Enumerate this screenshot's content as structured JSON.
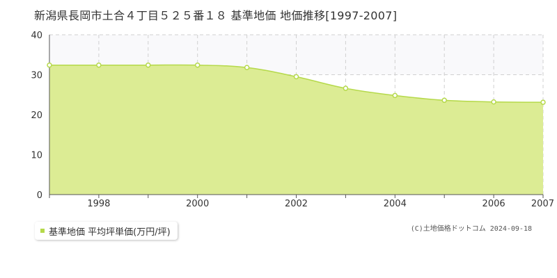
{
  "title": "新潟県長岡市土合４丁目５２５番１８ 基準地価 地価推移[1997-2007]",
  "legend_label": "基準地価 平均坪単価(万円/坪)",
  "credit": "(C)土地価格ドットコム 2024-09-18",
  "colors": {
    "fill": "#dcec94",
    "line": "#b5d94a",
    "grid": "#d0d0d0",
    "axis": "#555555",
    "upper_band": "#f9f9fb"
  },
  "chart_data": {
    "type": "area",
    "x": [
      1997,
      1998,
      1999,
      2000,
      2001,
      2002,
      2003,
      2004,
      2005,
      2006,
      2007
    ],
    "series": [
      {
        "name": "基準地価 平均坪単価(万円/坪)",
        "values": [
          32.4,
          32.4,
          32.4,
          32.4,
          31.8,
          29.5,
          26.6,
          24.8,
          23.6,
          23.2,
          23.1
        ]
      }
    ],
    "xlim": [
      1997,
      2007
    ],
    "ylim": [
      0,
      40
    ],
    "y_ticks": [
      0,
      10,
      20,
      30,
      40
    ],
    "x_tick_labels": [
      "1998",
      "2000",
      "2002",
      "2004",
      "2006",
      "2007"
    ],
    "grid": true,
    "xlabel": "",
    "ylabel": ""
  }
}
